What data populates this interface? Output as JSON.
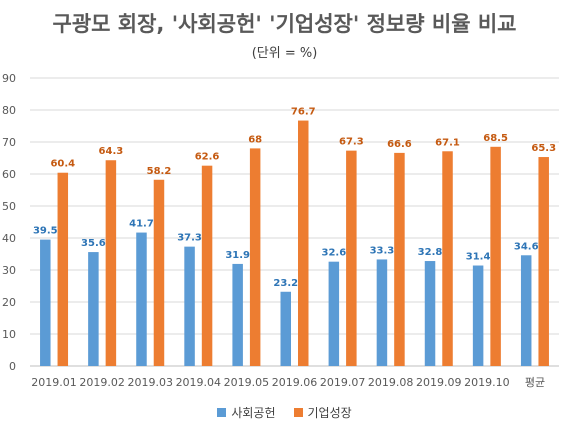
{
  "chart_data": {
    "type": "bar",
    "title": "구광모 회장, '사회공헌' '기업성장' 정보량 비율 비교",
    "subtitle": "(단위 = %)",
    "categories": [
      "2019.01",
      "2019.02",
      "2019.03",
      "2019.04",
      "2019.05",
      "2019.06",
      "2019.07",
      "2019.08",
      "2019.09",
      "2019.10",
      "평균"
    ],
    "series": [
      {
        "name": "사회공헌",
        "color": "#5B9BD5",
        "label_color": "#2E75B6",
        "values": [
          39.5,
          35.6,
          41.7,
          37.3,
          31.9,
          23.2,
          32.6,
          33.3,
          32.8,
          31.4,
          34.6
        ]
      },
      {
        "name": "기업성장",
        "color": "#ED7D31",
        "label_color": "#C55A11",
        "values": [
          60.4,
          64.3,
          58.2,
          62.6,
          68,
          76.7,
          67.3,
          66.6,
          67.1,
          68.5,
          65.3
        ]
      }
    ],
    "ylim": [
      0,
      90
    ],
    "yticks": [
      0,
      10,
      20,
      30,
      40,
      50,
      60,
      70,
      80,
      90
    ],
    "grid": true,
    "legend_position": "bottom"
  }
}
